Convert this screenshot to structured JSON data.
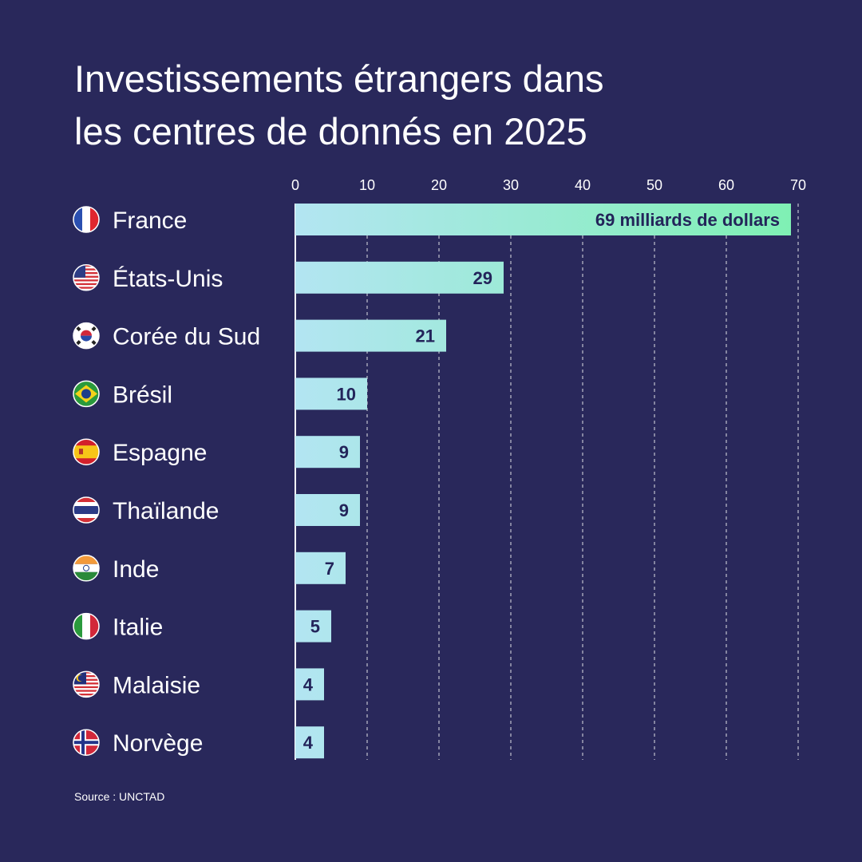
{
  "header": {
    "title_line1": "Investissements étrangers dans",
    "title_line2": "les centres de donnés en 2025"
  },
  "footer": {
    "source": "Source : UNCTAD"
  },
  "colors": {
    "background": "#29285b",
    "bar_start": "#b3e5f2",
    "bar_end": "#7ff0b4",
    "label_dark": "#23245a",
    "grid": "#ffffff"
  },
  "chart_data": {
    "type": "bar",
    "orientation": "horizontal",
    "title": "Investissements étrangers dans les centres de donnés en 2025",
    "xlabel": "",
    "ylabel": "",
    "xlim": [
      0,
      70
    ],
    "xticks": [
      0,
      10,
      20,
      30,
      40,
      50,
      60,
      70
    ],
    "grid": true,
    "categories": [
      "France",
      "États-Unis",
      "Corée du Sud",
      "Brésil",
      "Espagne",
      "Thaïlande",
      "Inde",
      "Italie",
      "Malaisie",
      "Norvège"
    ],
    "values": [
      69,
      29,
      21,
      10,
      9,
      9,
      7,
      5,
      4,
      4
    ],
    "data_labels": [
      "69 milliards de dollars",
      "29",
      "21",
      "10",
      "9",
      "9",
      "7",
      "5",
      "4",
      "4"
    ],
    "flags": [
      "france-flag-icon",
      "usa-flag-icon",
      "south-korea-flag-icon",
      "brazil-flag-icon",
      "spain-flag-icon",
      "thailand-flag-icon",
      "india-flag-icon",
      "italy-flag-icon",
      "malaysia-flag-icon",
      "norway-flag-icon"
    ]
  }
}
